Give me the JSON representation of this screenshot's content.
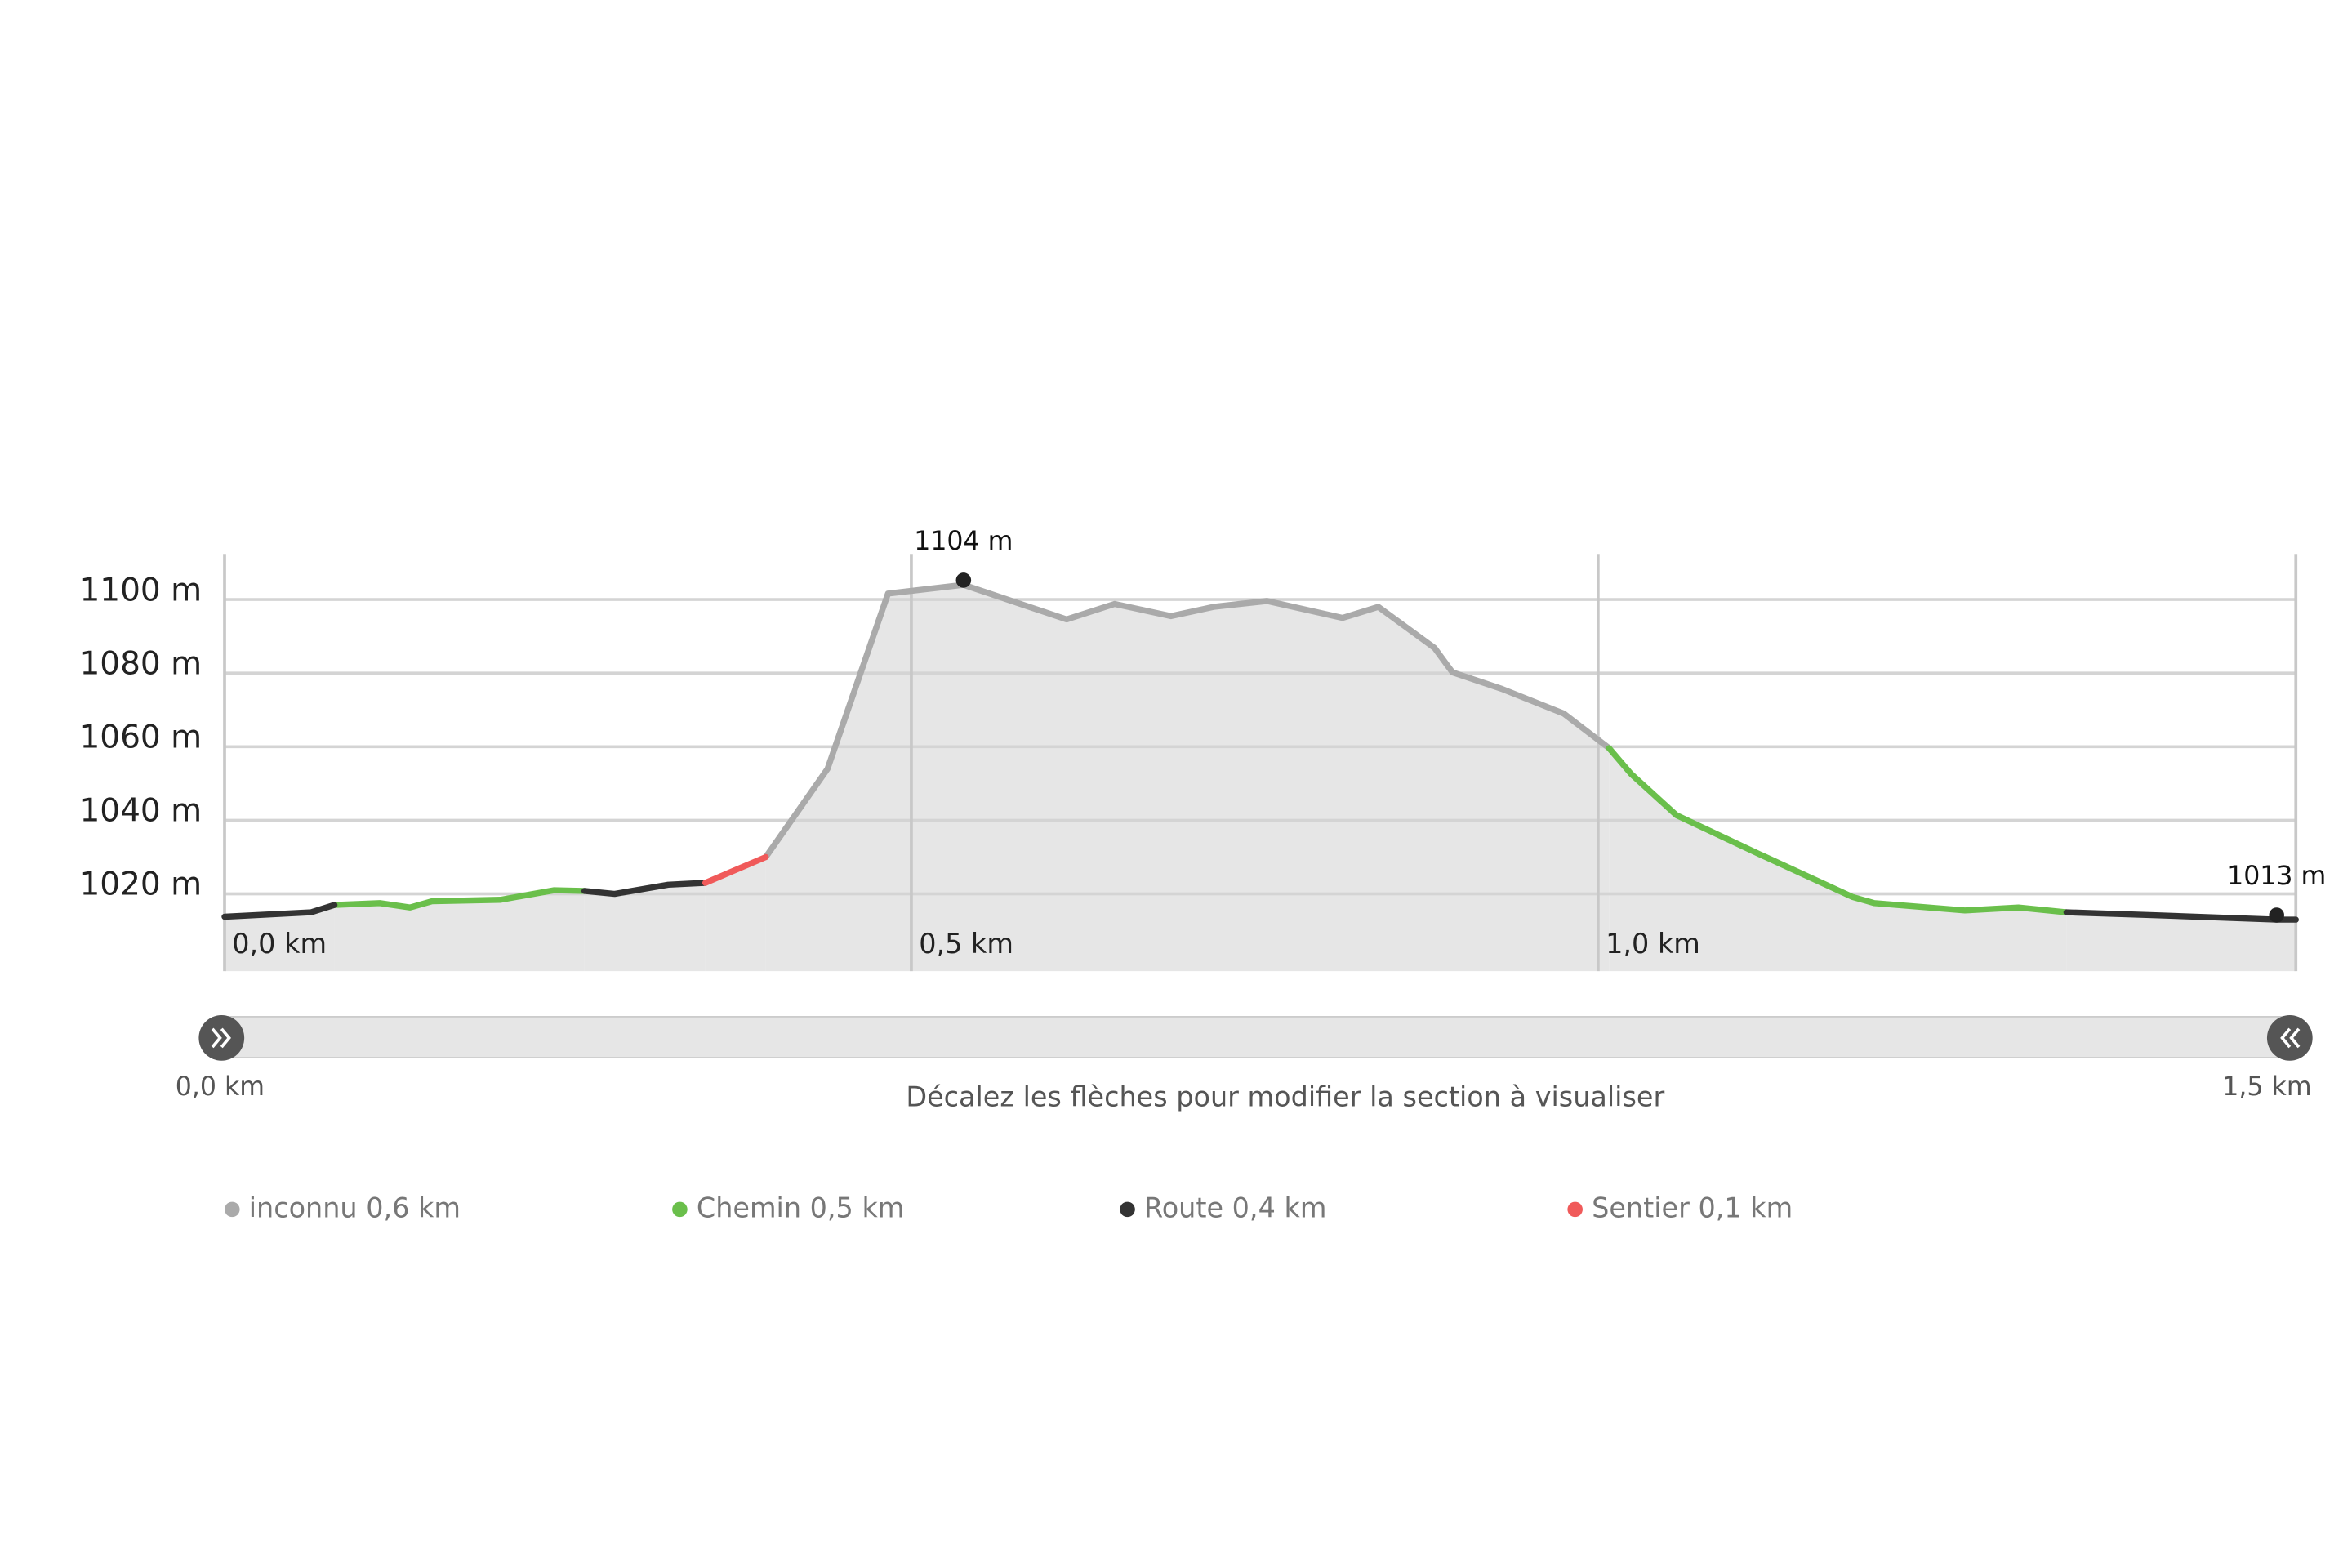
{
  "chart_data": {
    "type": "line",
    "x": [
      0,
      0.063,
      0.08,
      0.113,
      0.135,
      0.151,
      0.201,
      0.24,
      0.262,
      0.284,
      0.323,
      0.35,
      0.394,
      0.439,
      0.483,
      0.538,
      0.613,
      0.648,
      0.689,
      0.72,
      0.759,
      0.814,
      0.84,
      0.881,
      0.894,
      0.93,
      0.975,
      1.008,
      1.024,
      1.057,
      1.118,
      1.185,
      1.201,
      1.267,
      1.306,
      1.341,
      1.406,
      1.494,
      1.508
    ],
    "series": [
      {
        "name": "inconnu 0,6 km",
        "color": "#aaaaaa",
        "values": [
          null,
          null,
          null,
          null,
          null,
          null,
          null,
          null,
          null,
          null,
          null,
          null,
          1030,
          1054,
          1101.6,
          1104,
          1094.6,
          1098.8,
          1095.5,
          1098,
          1099.6,
          1095,
          1098,
          1086.8,
          1080.2,
          1075.7,
          1069,
          1059.6,
          null,
          null,
          null,
          null,
          null,
          null,
          null,
          null,
          null,
          null,
          null
        ]
      },
      {
        "name": "Chemin 0,5 km",
        "color": "#6abf4b",
        "values": [
          null,
          null,
          1017,
          1017.5,
          1016.3,
          1018,
          1018.4,
          1021,
          1020.8,
          null,
          null,
          null,
          null,
          null,
          null,
          null,
          null,
          null,
          null,
          null,
          null,
          null,
          null,
          null,
          null,
          null,
          null,
          1059.6,
          1052.6,
          1041.4,
          1030.7,
          1019.2,
          1017.5,
          1015.5,
          1016.3,
          1015,
          null,
          null,
          null
        ]
      },
      {
        "name": "Route 0,4 km",
        "color": "#333333",
        "values": [
          1013.8,
          1015,
          1017,
          null,
          null,
          null,
          null,
          null,
          1020.8,
          1020,
          1022.5,
          1023,
          null,
          null,
          null,
          null,
          null,
          null,
          null,
          null,
          null,
          null,
          null,
          null,
          null,
          null,
          null,
          null,
          null,
          null,
          null,
          null,
          null,
          null,
          null,
          1015,
          1014.2,
          1013,
          1013
        ]
      },
      {
        "name": "Sentier 0,1 km",
        "color": "#f05a5a",
        "values": [
          null,
          null,
          null,
          null,
          null,
          null,
          null,
          null,
          null,
          null,
          null,
          1023,
          1030,
          null,
          null,
          null,
          null,
          null,
          null,
          null,
          null,
          null,
          null,
          null,
          null,
          null,
          null,
          null,
          null,
          null,
          null,
          null,
          null,
          null,
          null,
          null,
          null,
          null,
          null
        ]
      }
    ],
    "xlim": [
      0,
      1.508
    ],
    "ylim": [
      999,
      1112.4
    ],
    "xticks": [
      {
        "value": 0,
        "label": "0,0 km"
      },
      {
        "value": 0.5,
        "label": "0,5 km"
      },
      {
        "value": 1.0,
        "label": "1,0 km"
      }
    ],
    "yticks": [
      {
        "value": 1020,
        "label": "1020 m"
      },
      {
        "value": 1040,
        "label": "1040 m"
      },
      {
        "value": 1060,
        "label": "1060 m"
      },
      {
        "value": 1080,
        "label": "1080 m"
      },
      {
        "value": 1100,
        "label": "1100 m"
      }
    ],
    "grid": true,
    "area_color": "#e6e6e6",
    "annotations": [
      {
        "x": 0.538,
        "y": 1104,
        "label": "1104 m"
      },
      {
        "x": 1.494,
        "y": 1013,
        "label": "1013 m"
      }
    ],
    "slider": {
      "start_label": "0,0 km",
      "end_label": "1,5 km",
      "caption": "Décalez les flèches pour modifier la section à visualiser"
    }
  }
}
